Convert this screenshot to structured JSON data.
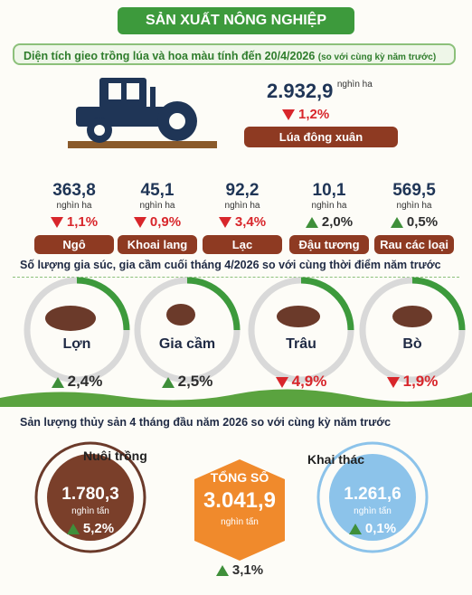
{
  "header": {
    "title": "SẢN XUẤT NÔNG NGHIỆP"
  },
  "planting": {
    "title": "Diện tích gieo trồng lúa và hoa màu tính đến 20/4/2026",
    "note": "(so với cùng kỳ năm trước)",
    "rice": {
      "value": "2.932,9",
      "unit": "nghìn ha",
      "change": "1,2%",
      "direction": "down",
      "label": "Lúa đông xuân"
    },
    "crops": [
      {
        "value": "363,8",
        "unit": "nghìn ha",
        "change": "1,1%",
        "direction": "down",
        "label": "Ngô"
      },
      {
        "value": "45,1",
        "unit": "nghìn ha",
        "change": "0,9%",
        "direction": "down",
        "label": "Khoai lang"
      },
      {
        "value": "92,2",
        "unit": "nghìn ha",
        "change": "3,4%",
        "direction": "down",
        "label": "Lạc"
      },
      {
        "value": "10,1",
        "unit": "nghìn ha",
        "change": "2,0%",
        "direction": "up",
        "label": "Đậu tương"
      },
      {
        "value": "569,5",
        "unit": "nghìn ha",
        "change": "0,5%",
        "direction": "up",
        "label": "Rau các loại"
      }
    ]
  },
  "livestock": {
    "title": "Số lượng gia súc, gia cầm cuối tháng 4/2026 so với cùng thời điểm năm trước",
    "items": [
      {
        "label": "Lợn",
        "change": "2,4%",
        "direction": "up"
      },
      {
        "label": "Gia cầm",
        "change": "2,5%",
        "direction": "up"
      },
      {
        "label": "Trâu",
        "change": "4,9%",
        "direction": "down"
      },
      {
        "label": "Bò",
        "change": "1,9%",
        "direction": "down"
      }
    ]
  },
  "fisheries": {
    "title": "Sản lượng thủy sản 4 tháng đầu năm 2026 so với cùng kỳ năm trước",
    "aquaculture": {
      "label": "Nuôi trồng",
      "value": "1.780,3",
      "unit": "nghìn tấn",
      "change": "5,2%",
      "direction": "up"
    },
    "total": {
      "label": "TỔNG SỐ",
      "value": "3.041,9",
      "unit": "nghìn tấn",
      "change": "3,1%",
      "direction": "up"
    },
    "capture": {
      "label": "Khai thác",
      "value": "1.261,6",
      "unit": "nghìn tấn",
      "change": "0,1%",
      "direction": "up"
    }
  }
}
